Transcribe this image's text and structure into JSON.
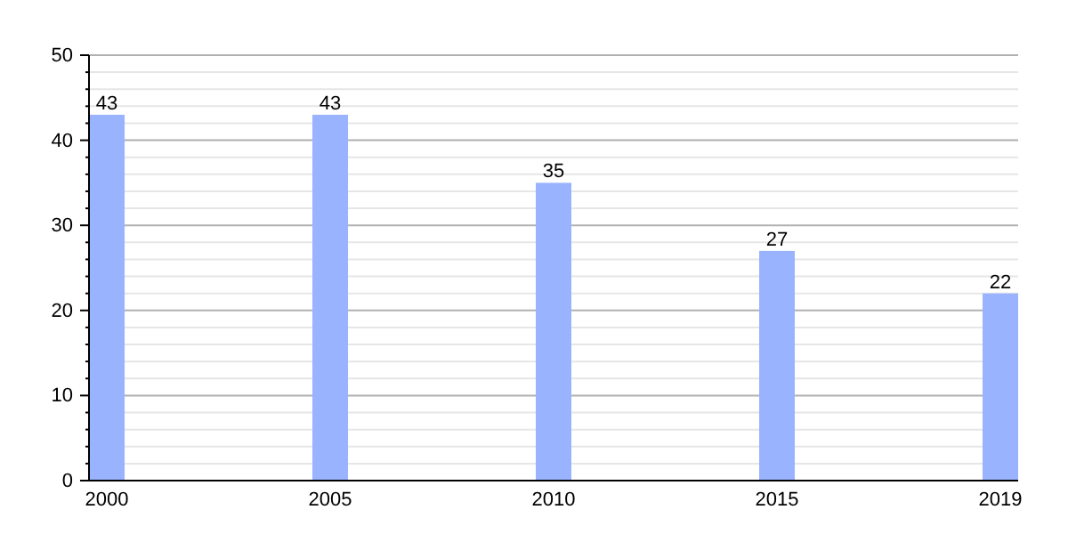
{
  "chart_data": {
    "type": "bar",
    "categories": [
      "2000",
      "2005",
      "2010",
      "2015",
      "2019"
    ],
    "values": [
      43,
      43,
      35,
      27,
      22
    ],
    "color": "#99b3ff",
    "ylim": [
      0,
      50
    ],
    "yticks": [
      0,
      {
        "value": 2,
        "label": null
      },
      {
        "value": 4,
        "label": null
      },
      {
        "value": 6,
        "label": null
      },
      {
        "value": 8,
        "label": null
      },
      10,
      {
        "value": 12,
        "label": null
      },
      {
        "value": 14,
        "label": null
      },
      {
        "value": 16,
        "label": null
      },
      {
        "value": 18,
        "label": null
      },
      20,
      {
        "value": 22,
        "label": null
      },
      {
        "value": 24,
        "label": null
      },
      {
        "value": 26,
        "label": null
      },
      {
        "value": 28,
        "label": null
      },
      30,
      {
        "value": 32,
        "label": null
      },
      {
        "value": 34,
        "label": null
      },
      {
        "value": 36,
        "label": null
      },
      {
        "value": 38,
        "label": null
      },
      40,
      {
        "value": 42,
        "label": null
      },
      {
        "value": 44,
        "label": null
      },
      {
        "value": 46,
        "label": null
      },
      {
        "value": 48,
        "label": null
      },
      50
    ],
    "grid": true,
    "data_labels": true
  }
}
